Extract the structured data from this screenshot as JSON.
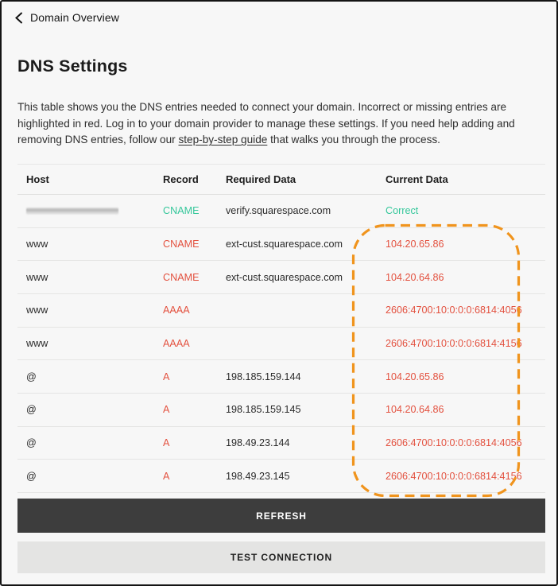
{
  "header": {
    "back_label": "Domain Overview"
  },
  "page": {
    "title": "DNS Settings"
  },
  "description": {
    "text_before_link": "This table shows you the DNS entries needed to connect your domain. Incorrect or missing entries are highlighted in red. Log in to your domain provider to manage these settings. If you need help adding and removing DNS entries, follow our ",
    "link_label": "step-by-step guide",
    "text_after_link": " that walks you through the process."
  },
  "table": {
    "headers": [
      "Host",
      "Record",
      "Required Data",
      "Current Data"
    ],
    "rows": [
      {
        "host": "",
        "host_redacted": true,
        "record": "CNAME",
        "record_status": "ok",
        "required_data": "verify.squarespace.com",
        "current_data": "Correct",
        "current_status": "ok"
      },
      {
        "host": "www",
        "host_redacted": false,
        "record": "CNAME",
        "record_status": "error",
        "required_data": "ext-cust.squarespace.com",
        "current_data": "104.20.65.86",
        "current_status": "error"
      },
      {
        "host": "www",
        "host_redacted": false,
        "record": "CNAME",
        "record_status": "error",
        "required_data": "ext-cust.squarespace.com",
        "current_data": "104.20.64.86",
        "current_status": "error"
      },
      {
        "host": "www",
        "host_redacted": false,
        "record": "AAAA",
        "record_status": "error",
        "required_data": "",
        "current_data": "2606:4700:10:0:0:0:6814:4056",
        "current_status": "error"
      },
      {
        "host": "www",
        "host_redacted": false,
        "record": "AAAA",
        "record_status": "error",
        "required_data": "",
        "current_data": "2606:4700:10:0:0:0:6814:4156",
        "current_status": "error"
      },
      {
        "host": "@",
        "host_redacted": false,
        "record": "A",
        "record_status": "error",
        "required_data": "198.185.159.144",
        "current_data": "104.20.65.86",
        "current_status": "error"
      },
      {
        "host": "@",
        "host_redacted": false,
        "record": "A",
        "record_status": "error",
        "required_data": "198.185.159.145",
        "current_data": "104.20.64.86",
        "current_status": "error"
      },
      {
        "host": "@",
        "host_redacted": false,
        "record": "A",
        "record_status": "error",
        "required_data": "198.49.23.144",
        "current_data": "2606:4700:10:0:0:0:6814:4056",
        "current_status": "error"
      },
      {
        "host": "@",
        "host_redacted": false,
        "record": "A",
        "record_status": "error",
        "required_data": "198.49.23.145",
        "current_data": "2606:4700:10:0:0:0:6814:4156",
        "current_status": "error"
      }
    ]
  },
  "actions": {
    "refresh_label": "REFRESH",
    "test_connection_label": "TEST CONNECTION"
  },
  "colors": {
    "success_green": "#35c79b",
    "error_red": "#e3513f",
    "highlight_orange": "#f0941d",
    "button_dark": "#3d3d3d",
    "button_light": "#e4e4e3"
  }
}
